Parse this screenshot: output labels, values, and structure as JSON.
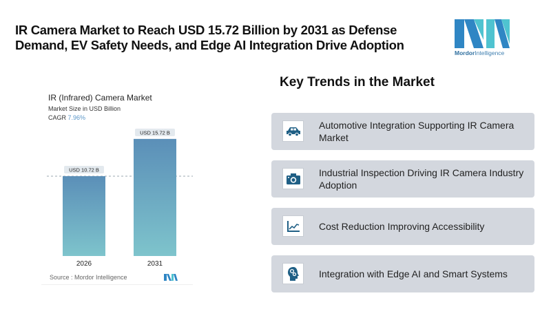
{
  "headline": "IR Camera Market to Reach USD 15.72 Billion by 2031 as Defense Demand, EV Safety Needs, and Edge AI Integration Drive Adoption",
  "logo": {
    "brand_bold": "Mordor",
    "brand_light": "Intelligence"
  },
  "chart": {
    "title": "IR (Infrared) Camera Market",
    "subtitle": "Market Size in USD Billion",
    "cagr_label": "CAGR",
    "cagr_value": "7.96%",
    "source": "Source : Mordor Intelligence"
  },
  "chart_data": {
    "type": "bar",
    "title": "IR (Infrared) Camera Market",
    "subtitle": "Market Size in USD Billion",
    "categories": [
      "2026",
      "2031"
    ],
    "values": [
      10.72,
      15.72
    ],
    "data_labels": [
      "USD 10.72 B",
      "USD 15.72 B"
    ],
    "xlabel": "",
    "ylabel": "Market Size in USD Billion",
    "ylim": [
      0,
      17
    ],
    "grid": false,
    "reference_line": 10.72,
    "colors": {
      "bar_top": "#5b8fb8",
      "bar_bottom": "#7ec4cc",
      "label_bg": "#e3e9ee"
    }
  },
  "trends": {
    "title": "Key Trends in the Market",
    "items": [
      {
        "icon": "car-icon",
        "label": "Automotive Integration Supporting IR Camera Market"
      },
      {
        "icon": "camera-icon",
        "label": "Industrial Inspection Driving IR Camera Industry Adoption"
      },
      {
        "icon": "trend-chart-icon",
        "label": "Cost Reduction Improving Accessibility"
      },
      {
        "icon": "ai-head-gears-icon",
        "label": "Integration with Edge AI and Smart Systems"
      }
    ]
  },
  "colors": {
    "icon": "#1f5f85",
    "card_bg": "#d3d7de",
    "brand_dark": "#2b7bb9",
    "brand_light": "#4fc3d0"
  }
}
